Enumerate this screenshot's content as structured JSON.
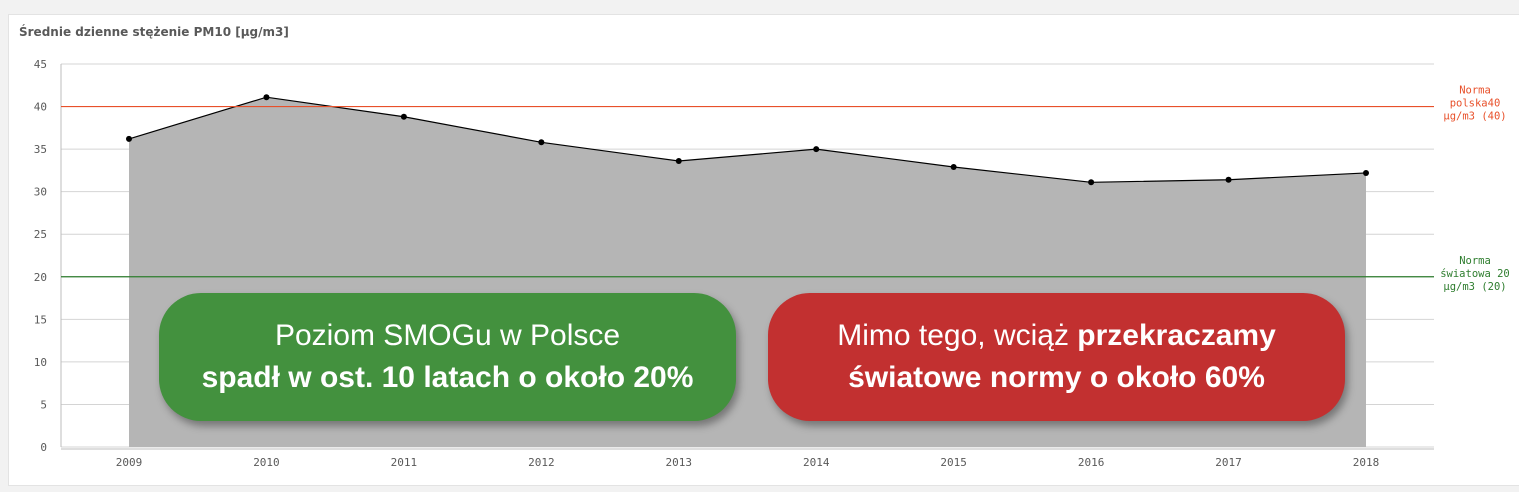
{
  "title": "Średnie dzienne stężenie PM10 [µg/m3]",
  "colors": {
    "area_fill": "#b5b5b5",
    "line": "#000000",
    "polish_norm": "#e8502a",
    "world_norm": "#2e7d2e",
    "green_callout": "#43913e",
    "red_callout": "#c23030"
  },
  "chart_data": {
    "type": "area",
    "title": "Średnie dzienne stężenie PM10 [µg/m3]",
    "x": [
      "2009",
      "2010",
      "2011",
      "2012",
      "2013",
      "2014",
      "2015",
      "2016",
      "2017",
      "2018"
    ],
    "series": [
      {
        "values": [
          36.2,
          41.1,
          38.8,
          35.8,
          33.6,
          35.0,
          32.9,
          31.1,
          31.4,
          32.2
        ]
      }
    ],
    "ylim": [
      0,
      45
    ],
    "yticks": [
      "0",
      "5",
      "10",
      "15",
      "20",
      "25",
      "30",
      "35",
      "40",
      "45"
    ],
    "grid": true,
    "reference_lines": [
      {
        "value": 40,
        "label_lines": [
          "Norma",
          "polska40",
          "µg/m3 (40)"
        ]
      },
      {
        "value": 20,
        "label_lines": [
          "Norma",
          "światowa 20",
          "µg/m3 (20)"
        ]
      }
    ]
  },
  "callouts": {
    "green": {
      "line1": "Poziom SMOGu w Polsce",
      "line2": "spadł w ost. 10 latach o około 20%"
    },
    "red": {
      "line1_normal": "Mimo tego, wciąż ",
      "line1_bold": "przekraczamy",
      "line2": "światowe normy o około 60%"
    }
  }
}
